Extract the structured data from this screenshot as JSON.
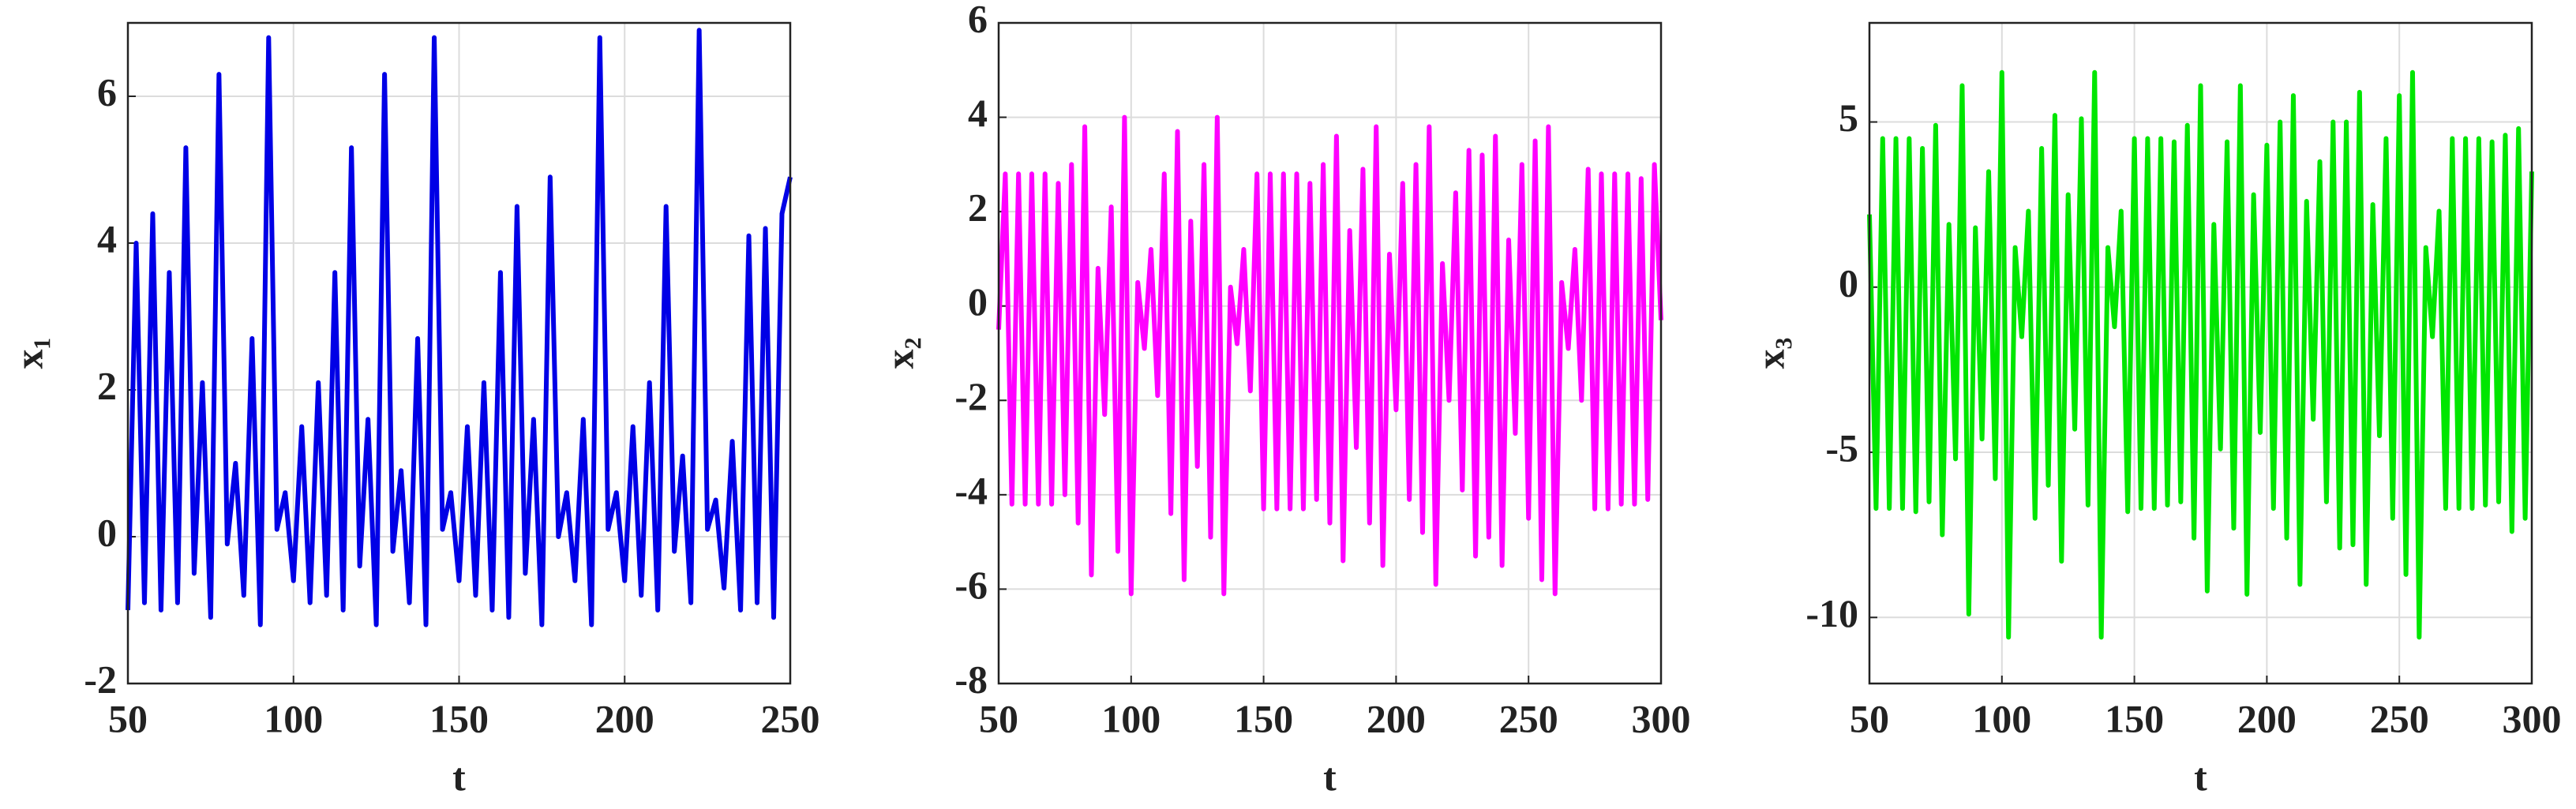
{
  "chart_data": [
    {
      "type": "line",
      "xlabel": "t",
      "ylabel": "x₁",
      "color": "#0000e6",
      "grid": true,
      "xlim": [
        50,
        250
      ],
      "ylim": [
        -2,
        7
      ],
      "xticks": [
        50,
        100,
        150,
        200,
        250
      ],
      "yticks": [
        -2,
        0,
        2,
        4,
        6
      ],
      "x": [
        50,
        52.5,
        55,
        57.5,
        60,
        62.5,
        65,
        67.5,
        70,
        72.5,
        75,
        77.5,
        80,
        82.5,
        85,
        87.5,
        90,
        92.5,
        95,
        97.5,
        100,
        102.5,
        105,
        107.5,
        110,
        112.5,
        115,
        117.5,
        120,
        122.5,
        125,
        127.5,
        130,
        132.5,
        135,
        137.5,
        140,
        142.5,
        145,
        147.5,
        150,
        152.5,
        155,
        157.5,
        160,
        162.5,
        165,
        167.5,
        170,
        172.5,
        175,
        177.5,
        180,
        182.5,
        185,
        187.5,
        190,
        192.5,
        195,
        197.5,
        200,
        202.5,
        205,
        207.5,
        210,
        212.5,
        215,
        217.5,
        220,
        222.5,
        225,
        227.5,
        230,
        232.5,
        235,
        237.5,
        240,
        242.5,
        245,
        247.5,
        250
      ],
      "values": [
        -1.0,
        4.0,
        -0.9,
        4.4,
        -1.0,
        3.6,
        -0.9,
        5.3,
        -0.5,
        2.1,
        -1.1,
        6.3,
        -0.1,
        1.0,
        -0.8,
        2.7,
        -1.2,
        6.8,
        0.1,
        0.6,
        -0.6,
        1.5,
        -0.9,
        2.1,
        -0.8,
        3.6,
        -1.0,
        5.3,
        -0.4,
        1.6,
        -1.2,
        6.3,
        -0.2,
        0.9,
        -0.9,
        2.7,
        -1.2,
        6.8,
        0.1,
        0.6,
        -0.6,
        1.5,
        -0.8,
        2.1,
        -1.0,
        3.6,
        -1.1,
        4.5,
        -0.5,
        1.6,
        -1.2,
        4.9,
        0.0,
        0.6,
        -0.6,
        1.6,
        -1.2,
        6.8,
        0.1,
        0.6,
        -0.6,
        1.5,
        -0.8,
        2.1,
        -1.0,
        4.5,
        -0.2,
        1.1,
        -0.9,
        6.9,
        0.1,
        0.5,
        -0.7,
        1.3,
        -1.0,
        4.1,
        -0.9,
        4.2,
        -1.1,
        4.4,
        4.9
      ]
    },
    {
      "type": "line",
      "xlabel": "t",
      "ylabel": "x₂",
      "color": "#ff00ff",
      "grid": true,
      "xlim": [
        50,
        300
      ],
      "ylim": [
        -8,
        6
      ],
      "xticks": [
        50,
        100,
        150,
        200,
        250,
        300
      ],
      "yticks": [
        -8,
        -6,
        -4,
        -2,
        0,
        2,
        4,
        6
      ],
      "x": [
        50,
        52.5,
        55,
        57.5,
        60,
        62.5,
        65,
        67.5,
        70,
        72.5,
        75,
        77.5,
        80,
        82.5,
        85,
        87.5,
        90,
        92.5,
        95,
        97.5,
        100,
        102.5,
        105,
        107.5,
        110,
        112.5,
        115,
        117.5,
        120,
        122.5,
        125,
        127.5,
        130,
        132.5,
        135,
        137.5,
        140,
        142.5,
        145,
        147.5,
        150,
        152.5,
        155,
        157.5,
        160,
        162.5,
        165,
        167.5,
        170,
        172.5,
        175,
        177.5,
        180,
        182.5,
        185,
        187.5,
        190,
        192.5,
        195,
        197.5,
        200,
        202.5,
        205,
        207.5,
        210,
        212.5,
        215,
        217.5,
        220,
        222.5,
        225,
        227.5,
        230,
        232.5,
        235,
        237.5,
        240,
        242.5,
        245,
        247.5,
        250,
        252.5,
        255,
        257.5,
        260,
        262.5,
        265,
        267.5,
        270,
        272.5,
        275,
        277.5,
        280,
        282.5,
        285,
        287.5,
        290,
        292.5,
        295,
        297.5,
        300
      ],
      "values": [
        -0.5,
        2.8,
        -4.2,
        2.8,
        -4.2,
        2.8,
        -4.2,
        2.8,
        -4.2,
        2.6,
        -4.0,
        3.0,
        -4.6,
        3.8,
        -5.7,
        0.8,
        -2.3,
        2.1,
        -5.2,
        4.0,
        -6.1,
        0.5,
        -0.9,
        1.2,
        -1.9,
        2.8,
        -4.4,
        3.7,
        -5.8,
        1.8,
        -3.4,
        3.0,
        -4.9,
        4.0,
        -6.1,
        0.4,
        -0.8,
        1.2,
        -1.8,
        2.8,
        -4.3,
        2.8,
        -4.3,
        2.8,
        -4.3,
        2.8,
        -4.3,
        2.6,
        -4.1,
        3.0,
        -4.6,
        3.6,
        -5.4,
        1.6,
        -3.0,
        2.9,
        -4.6,
        3.8,
        -5.5,
        1.1,
        -2.2,
        2.6,
        -4.1,
        3.0,
        -4.8,
        3.8,
        -5.9,
        0.9,
        -2.0,
        2.4,
        -3.9,
        3.3,
        -5.3,
        3.2,
        -4.9,
        3.6,
        -5.5,
        1.4,
        -2.7,
        3.0,
        -4.5,
        3.5,
        -5.8,
        3.8,
        -6.1,
        0.5,
        -0.9,
        1.2,
        -2.0,
        2.9,
        -4.3,
        2.8,
        -4.3,
        2.8,
        -4.2,
        2.8,
        -4.2,
        2.7,
        -4.1,
        3.0,
        -0.3
      ]
    },
    {
      "type": "line",
      "xlabel": "t",
      "ylabel": "x₃",
      "color": "#00e600",
      "grid": true,
      "xlim": [
        50,
        300
      ],
      "ylim": [
        -12,
        8
      ],
      "xticks": [
        50,
        100,
        150,
        200,
        250,
        300
      ],
      "yticks": [
        -10,
        -5,
        0,
        5
      ],
      "x": [
        50,
        52.5,
        55,
        57.5,
        60,
        62.5,
        65,
        67.5,
        70,
        72.5,
        75,
        77.5,
        80,
        82.5,
        85,
        87.5,
        90,
        92.5,
        95,
        97.5,
        100,
        102.5,
        105,
        107.5,
        110,
        112.5,
        115,
        117.5,
        120,
        122.5,
        125,
        127.5,
        130,
        132.5,
        135,
        137.5,
        140,
        142.5,
        145,
        147.5,
        150,
        152.5,
        155,
        157.5,
        160,
        162.5,
        165,
        167.5,
        170,
        172.5,
        175,
        177.5,
        180,
        182.5,
        185,
        187.5,
        190,
        192.5,
        195,
        197.5,
        200,
        202.5,
        205,
        207.5,
        210,
        212.5,
        215,
        217.5,
        220,
        222.5,
        225,
        227.5,
        230,
        232.5,
        235,
        237.5,
        240,
        242.5,
        245,
        247.5,
        250,
        252.5,
        255,
        257.5,
        260,
        262.5,
        265,
        267.5,
        270,
        272.5,
        275,
        277.5,
        280,
        282.5,
        285,
        287.5,
        290,
        292.5,
        295,
        297.5,
        300
      ],
      "values": [
        2.2,
        -6.7,
        4.5,
        -6.7,
        4.5,
        -6.7,
        4.5,
        -6.8,
        4.2,
        -6.5,
        4.9,
        -7.5,
        1.9,
        -5.2,
        6.1,
        -9.9,
        1.8,
        -4.6,
        3.5,
        -5.8,
        6.5,
        -10.6,
        1.2,
        -1.5,
        2.3,
        -7.0,
        4.2,
        -6.0,
        5.2,
        -8.3,
        2.8,
        -4.3,
        5.1,
        -6.6,
        6.5,
        -10.6,
        1.2,
        -1.2,
        2.3,
        -6.8,
        4.5,
        -6.7,
        4.5,
        -6.7,
        4.5,
        -6.6,
        4.4,
        -6.5,
        4.9,
        -7.6,
        6.1,
        -9.2,
        1.9,
        -4.9,
        4.4,
        -7.3,
        6.1,
        -9.3,
        2.8,
        -4.4,
        4.3,
        -6.7,
        5.0,
        -7.6,
        5.8,
        -9.0,
        2.6,
        -4.0,
        3.8,
        -6.5,
        5.0,
        -7.9,
        5.0,
        -7.8,
        5.9,
        -9.0,
        2.5,
        -4.5,
        4.5,
        -7.0,
        5.8,
        -8.7,
        6.5,
        -10.6,
        1.2,
        -1.5,
        2.3,
        -6.7,
        4.5,
        -6.7,
        4.5,
        -6.7,
        4.5,
        -6.6,
        4.4,
        -6.5,
        4.6,
        -7.4,
        4.8,
        -7.0,
        3.5
      ]
    }
  ]
}
